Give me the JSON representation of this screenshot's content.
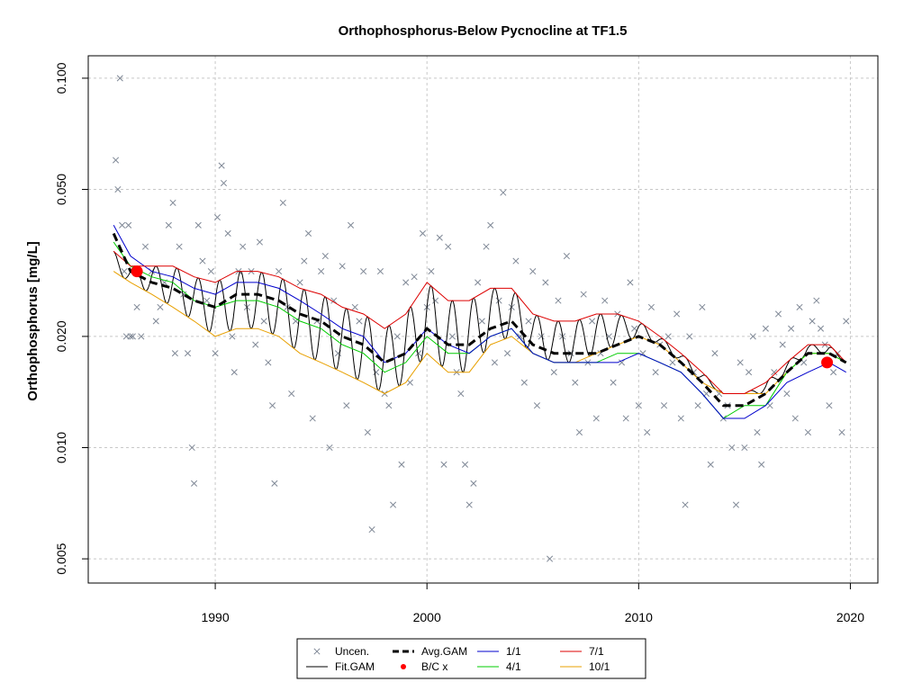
{
  "chart_data": {
    "type": "line",
    "title": "Orthophosphorus-Below Pycnocline at TF1.5",
    "ylabel": "Orthophosphorus [mg/L]",
    "xlabel": "",
    "y_scale": "log",
    "xlim": [
      1984.0,
      2021.3
    ],
    "ylim": [
      0.0043,
      0.115
    ],
    "x_ticks": [
      1990,
      2000,
      2010,
      2020
    ],
    "x_tick_labels": [
      "1990",
      "2000",
      "2010",
      "2020"
    ],
    "y_ticks": [
      0.005,
      0.01,
      0.02,
      0.05,
      0.1
    ],
    "y_tick_labels": [
      "0.005",
      "0.010",
      "0.020",
      "0.050",
      "0.100"
    ],
    "grid": true,
    "legend_position": "bottom-center",
    "legend": [
      {
        "key": "uncen",
        "label": "Uncen.",
        "kind": "point-x",
        "color": "#7f8896"
      },
      {
        "key": "avg",
        "label": "Avg.GAM",
        "kind": "dashed",
        "color": "#000000"
      },
      {
        "key": "s1",
        "label": "1/1",
        "kind": "line",
        "color": "#0000cc"
      },
      {
        "key": "s7",
        "label": "7/1",
        "kind": "line",
        "color": "#dd0000"
      },
      {
        "key": "fit",
        "label": "Fit.GAM",
        "kind": "line",
        "color": "#000000"
      },
      {
        "key": "bc",
        "label": "B/C x",
        "kind": "point-dot",
        "color": "#ff0000"
      },
      {
        "key": "s4",
        "label": "4/1",
        "kind": "line",
        "color": "#00cc00"
      },
      {
        "key": "s10",
        "label": "10/1",
        "kind": "line",
        "color": "#e8a000"
      }
    ],
    "series": {
      "avg": {
        "x": [
          1985.2,
          1986,
          1987,
          1988,
          1989,
          1990,
          1991,
          1992,
          1993,
          1994,
          1995,
          1996,
          1997,
          1998,
          1999,
          2000,
          2001,
          2002,
          2003,
          2004,
          2005,
          2006,
          2007,
          2008,
          2009,
          2010,
          2011,
          2012,
          2013,
          2014,
          2015,
          2016,
          2017,
          2018,
          2019,
          2019.8
        ],
        "y": [
          0.038,
          0.03,
          0.028,
          0.027,
          0.025,
          0.024,
          0.026,
          0.026,
          0.025,
          0.023,
          0.022,
          0.02,
          0.019,
          0.017,
          0.018,
          0.021,
          0.019,
          0.019,
          0.021,
          0.022,
          0.019,
          0.018,
          0.018,
          0.018,
          0.019,
          0.02,
          0.019,
          0.017,
          0.015,
          0.013,
          0.013,
          0.014,
          0.016,
          0.018,
          0.018,
          0.017
        ]
      },
      "s1": {
        "x": [
          1985.2,
          1986,
          1987,
          1988,
          1989,
          1990,
          1991,
          1992,
          1993,
          1994,
          1995,
          1996,
          1997,
          1998,
          1999,
          2000,
          2001,
          2002,
          2003,
          2004,
          2005,
          2006,
          2007,
          2008,
          2009,
          2010,
          2011,
          2012,
          2013,
          2014,
          2015,
          2016,
          2017,
          2018,
          2019,
          2019.8
        ],
        "y": [
          0.04,
          0.033,
          0.03,
          0.029,
          0.027,
          0.026,
          0.028,
          0.028,
          0.027,
          0.025,
          0.023,
          0.021,
          0.02,
          0.017,
          0.018,
          0.021,
          0.019,
          0.018,
          0.02,
          0.021,
          0.018,
          0.017,
          0.017,
          0.017,
          0.017,
          0.018,
          0.017,
          0.016,
          0.014,
          0.012,
          0.012,
          0.013,
          0.015,
          0.016,
          0.017,
          0.016
        ]
      },
      "s4": {
        "x": [
          1985.2,
          1986,
          1987,
          1988,
          1989,
          1990,
          1991,
          1992,
          1993,
          1994,
          1995,
          1996,
          1997,
          1998,
          1999,
          2000,
          2001,
          2002,
          2003,
          2004,
          2005,
          2006,
          2007,
          2008,
          2009,
          2010,
          2011,
          2012,
          2013,
          2014,
          2015,
          2016,
          2017,
          2018,
          2019,
          2019.8
        ],
        "y": [
          0.036,
          0.031,
          0.029,
          0.028,
          0.025,
          0.024,
          0.025,
          0.025,
          0.024,
          0.022,
          0.021,
          0.019,
          0.018,
          0.016,
          0.017,
          0.02,
          0.018,
          0.018,
          0.02,
          0.021,
          0.018,
          0.017,
          0.017,
          0.017,
          0.018,
          0.018,
          0.017,
          0.016,
          0.014,
          0.012,
          0.013,
          0.013,
          0.016,
          0.018,
          0.018,
          0.017
        ]
      },
      "s7": {
        "x": [
          1985.2,
          1986,
          1987,
          1988,
          1989,
          1990,
          1991,
          1992,
          1993,
          1994,
          1995,
          1996,
          1997,
          1998,
          1999,
          2000,
          2001,
          2002,
          2003,
          2004,
          2005,
          2006,
          2007,
          2008,
          2009,
          2010,
          2011,
          2012,
          2013,
          2014,
          2015,
          2016,
          2017,
          2018,
          2019,
          2019.8
        ],
        "y": [
          0.034,
          0.031,
          0.031,
          0.031,
          0.029,
          0.028,
          0.03,
          0.03,
          0.029,
          0.027,
          0.026,
          0.024,
          0.023,
          0.021,
          0.023,
          0.028,
          0.025,
          0.025,
          0.027,
          0.027,
          0.023,
          0.022,
          0.022,
          0.023,
          0.023,
          0.022,
          0.02,
          0.018,
          0.016,
          0.014,
          0.014,
          0.015,
          0.017,
          0.019,
          0.019,
          0.017
        ]
      },
      "s10": {
        "x": [
          1985.2,
          1986,
          1987,
          1988,
          1989,
          1990,
          1991,
          1992,
          1993,
          1994,
          1995,
          1996,
          1997,
          1998,
          1999,
          2000,
          2001,
          2002,
          2003,
          2004,
          2005,
          2006,
          2007,
          2008,
          2009,
          2010,
          2011,
          2012,
          2013,
          2014,
          2015,
          2016,
          2017,
          2018,
          2019,
          2019.8
        ],
        "y": [
          0.03,
          0.028,
          0.026,
          0.024,
          0.022,
          0.02,
          0.021,
          0.021,
          0.02,
          0.018,
          0.017,
          0.016,
          0.015,
          0.014,
          0.015,
          0.018,
          0.016,
          0.016,
          0.019,
          0.02,
          0.018,
          0.017,
          0.017,
          0.018,
          0.019,
          0.02,
          0.019,
          0.017,
          0.015,
          0.014,
          0.014,
          0.014,
          0.016,
          0.018,
          0.018,
          0.017
        ]
      }
    },
    "fit_gam": {
      "start_year": 1985.2,
      "end_year": 2019.8,
      "cycles_per_year": 1,
      "upper_series": "s7",
      "lower_series": "s10"
    },
    "bc_points": [
      {
        "x": 1986.3,
        "y": 0.03
      },
      {
        "x": 2018.9,
        "y": 0.017
      }
    ],
    "uncen_points": [
      [
        1985.3,
        0.06
      ],
      [
        1985.4,
        0.05
      ],
      [
        1985.5,
        0.1
      ],
      [
        1985.6,
        0.04
      ],
      [
        1985.7,
        0.03
      ],
      [
        1985.8,
        0.02
      ],
      [
        1985.9,
        0.04
      ],
      [
        1986.0,
        0.02
      ],
      [
        1986.1,
        0.02
      ],
      [
        1986.3,
        0.024
      ],
      [
        1986.5,
        0.02
      ],
      [
        1986.7,
        0.035
      ],
      [
        1987.0,
        0.03
      ],
      [
        1987.2,
        0.022
      ],
      [
        1987.4,
        0.024
      ],
      [
        1987.6,
        0.028
      ],
      [
        1987.8,
        0.04
      ],
      [
        1988.0,
        0.046
      ],
      [
        1988.1,
        0.018
      ],
      [
        1988.3,
        0.035
      ],
      [
        1988.5,
        0.026
      ],
      [
        1988.7,
        0.018
      ],
      [
        1988.9,
        0.01
      ],
      [
        1989.0,
        0.008
      ],
      [
        1989.2,
        0.04
      ],
      [
        1989.4,
        0.032
      ],
      [
        1989.6,
        0.025
      ],
      [
        1989.8,
        0.03
      ],
      [
        1990.0,
        0.018
      ],
      [
        1990.1,
        0.042
      ],
      [
        1990.3,
        0.058
      ],
      [
        1990.4,
        0.052
      ],
      [
        1990.6,
        0.038
      ],
      [
        1990.8,
        0.02
      ],
      [
        1990.9,
        0.016
      ],
      [
        1991.1,
        0.03
      ],
      [
        1991.3,
        0.035
      ],
      [
        1991.5,
        0.024
      ],
      [
        1991.7,
        0.03
      ],
      [
        1991.9,
        0.019
      ],
      [
        1992.1,
        0.036
      ],
      [
        1992.3,
        0.022
      ],
      [
        1992.5,
        0.017
      ],
      [
        1992.7,
        0.013
      ],
      [
        1992.8,
        0.008
      ],
      [
        1993.0,
        0.03
      ],
      [
        1993.2,
        0.046
      ],
      [
        1993.4,
        0.024
      ],
      [
        1993.6,
        0.014
      ],
      [
        1993.8,
        0.022
      ],
      [
        1994.0,
        0.028
      ],
      [
        1994.2,
        0.032
      ],
      [
        1994.4,
        0.038
      ],
      [
        1994.6,
        0.012
      ],
      [
        1994.8,
        0.022
      ],
      [
        1995.0,
        0.03
      ],
      [
        1995.2,
        0.033
      ],
      [
        1995.4,
        0.01
      ],
      [
        1995.6,
        0.025
      ],
      [
        1995.8,
        0.018
      ],
      [
        1996.0,
        0.031
      ],
      [
        1996.2,
        0.013
      ],
      [
        1996.4,
        0.04
      ],
      [
        1996.6,
        0.024
      ],
      [
        1996.8,
        0.022
      ],
      [
        1997.0,
        0.03
      ],
      [
        1997.2,
        0.011
      ],
      [
        1997.4,
        0.006
      ],
      [
        1997.6,
        0.016
      ],
      [
        1997.8,
        0.03
      ],
      [
        1998.0,
        0.014
      ],
      [
        1998.2,
        0.013
      ],
      [
        1998.4,
        0.007
      ],
      [
        1998.6,
        0.02
      ],
      [
        1998.8,
        0.009
      ],
      [
        1999.0,
        0.028
      ],
      [
        1999.2,
        0.015
      ],
      [
        1999.4,
        0.029
      ],
      [
        1999.6,
        0.018
      ],
      [
        1999.8,
        0.038
      ],
      [
        2000.0,
        0.024
      ],
      [
        2000.2,
        0.03
      ],
      [
        2000.4,
        0.025
      ],
      [
        2000.6,
        0.037
      ],
      [
        2000.8,
        0.009
      ],
      [
        2001.0,
        0.035
      ],
      [
        2001.2,
        0.02
      ],
      [
        2001.4,
        0.016
      ],
      [
        2001.6,
        0.014
      ],
      [
        2001.8,
        0.009
      ],
      [
        2002.0,
        0.007
      ],
      [
        2002.2,
        0.008
      ],
      [
        2002.4,
        0.028
      ],
      [
        2002.6,
        0.022
      ],
      [
        2002.8,
        0.035
      ],
      [
        2003.0,
        0.04
      ],
      [
        2003.2,
        0.017
      ],
      [
        2003.4,
        0.025
      ],
      [
        2003.6,
        0.049
      ],
      [
        2003.8,
        0.018
      ],
      [
        2004.0,
        0.024
      ],
      [
        2004.2,
        0.032
      ],
      [
        2004.4,
        0.02
      ],
      [
        2004.6,
        0.015
      ],
      [
        2004.8,
        0.022
      ],
      [
        2005.0,
        0.03
      ],
      [
        2005.2,
        0.013
      ],
      [
        2005.4,
        0.02
      ],
      [
        2005.6,
        0.028
      ],
      [
        2005.8,
        0.005
      ],
      [
        2006.0,
        0.016
      ],
      [
        2006.2,
        0.025
      ],
      [
        2006.4,
        0.02
      ],
      [
        2006.6,
        0.033
      ],
      [
        2006.8,
        0.018
      ],
      [
        2007.0,
        0.015
      ],
      [
        2007.2,
        0.011
      ],
      [
        2007.4,
        0.026
      ],
      [
        2007.6,
        0.017
      ],
      [
        2007.8,
        0.022
      ],
      [
        2008.0,
        0.012
      ],
      [
        2008.2,
        0.018
      ],
      [
        2008.4,
        0.025
      ],
      [
        2008.6,
        0.02
      ],
      [
        2008.8,
        0.015
      ],
      [
        2009.0,
        0.023
      ],
      [
        2009.2,
        0.017
      ],
      [
        2009.4,
        0.012
      ],
      [
        2009.6,
        0.028
      ],
      [
        2009.8,
        0.021
      ],
      [
        2010.0,
        0.013
      ],
      [
        2010.2,
        0.018
      ],
      [
        2010.4,
        0.011
      ],
      [
        2010.6,
        0.024
      ],
      [
        2010.8,
        0.016
      ],
      [
        2011.0,
        0.019
      ],
      [
        2011.2,
        0.013
      ],
      [
        2011.4,
        0.02
      ],
      [
        2011.6,
        0.017
      ],
      [
        2011.8,
        0.023
      ],
      [
        2012.0,
        0.012
      ],
      [
        2012.2,
        0.007
      ],
      [
        2012.4,
        0.02
      ],
      [
        2012.6,
        0.016
      ],
      [
        2012.8,
        0.013
      ],
      [
        2013.0,
        0.024
      ],
      [
        2013.2,
        0.014
      ],
      [
        2013.4,
        0.009
      ],
      [
        2013.6,
        0.018
      ],
      [
        2013.8,
        0.014
      ],
      [
        2014.0,
        0.012
      ],
      [
        2014.2,
        0.013
      ],
      [
        2014.4,
        0.01
      ],
      [
        2014.6,
        0.007
      ],
      [
        2014.8,
        0.017
      ],
      [
        2015.0,
        0.01
      ],
      [
        2015.2,
        0.016
      ],
      [
        2015.4,
        0.02
      ],
      [
        2015.6,
        0.011
      ],
      [
        2015.8,
        0.009
      ],
      [
        2016.0,
        0.021
      ],
      [
        2016.2,
        0.013
      ],
      [
        2016.4,
        0.016
      ],
      [
        2016.6,
        0.023
      ],
      [
        2016.8,
        0.019
      ],
      [
        2017.0,
        0.014
      ],
      [
        2017.2,
        0.021
      ],
      [
        2017.4,
        0.012
      ],
      [
        2017.6,
        0.024
      ],
      [
        2017.8,
        0.017
      ],
      [
        2018.0,
        0.011
      ],
      [
        2018.2,
        0.022
      ],
      [
        2018.4,
        0.025
      ],
      [
        2018.6,
        0.021
      ],
      [
        2018.8,
        0.019
      ],
      [
        2019.0,
        0.013
      ],
      [
        2019.2,
        0.016
      ],
      [
        2019.4,
        0.018
      ],
      [
        2019.6,
        0.011
      ],
      [
        2019.8,
        0.022
      ]
    ]
  }
}
